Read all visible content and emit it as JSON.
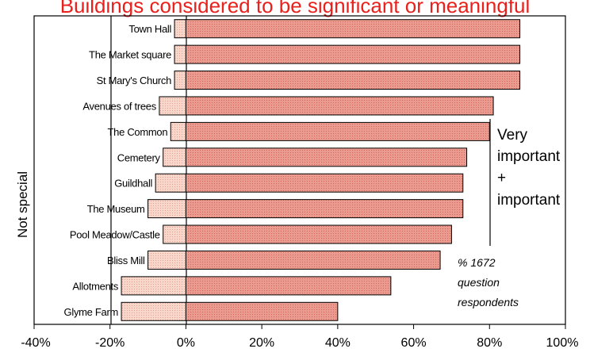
{
  "chart_data": {
    "type": "bar",
    "orientation": "horizontal-diverging",
    "title": "Buildings considered to be significant or meaningful",
    "ylabel": "Not special",
    "xlim": [
      -40,
      100
    ],
    "xticks": [
      "-40%",
      "-20%",
      "0%",
      "20%",
      "40%",
      "60%",
      "80%",
      "100%"
    ],
    "grid": false,
    "categories": [
      "Town Hall",
      "The Market square",
      "St Mary's Church",
      "Avenues of trees",
      "The Common",
      "Cemetery",
      "Guildhall",
      "The Museum",
      "Pool Meadow/Castle",
      "Bliss Mill",
      "Allotments",
      "Glyme Farm"
    ],
    "series": [
      {
        "name": "Very important + important",
        "values": [
          88,
          88,
          88,
          81,
          80,
          74,
          73,
          73,
          70,
          67,
          54,
          40
        ],
        "color": "#e8968a"
      },
      {
        "name": "Not special",
        "values": [
          -3,
          -3,
          -3,
          -7,
          -4,
          -6,
          -8,
          -10,
          -6,
          -10,
          -17,
          -17
        ],
        "color": "#f8d2c6"
      }
    ],
    "annotations": {
      "series_label": [
        "Very",
        "important",
        "+",
        "important"
      ],
      "note": [
        "% 1672",
        "question",
        "respondents"
      ]
    }
  }
}
